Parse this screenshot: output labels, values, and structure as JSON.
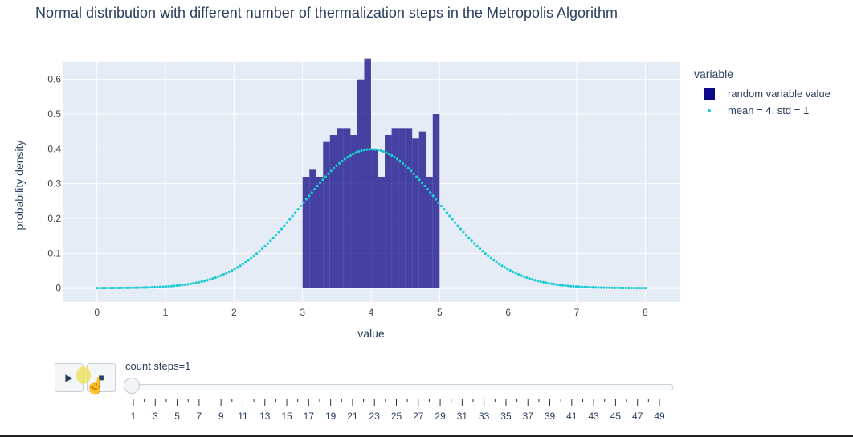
{
  "title": "Normal distribution with different number of thermalization steps in the Metropolis Algorithm",
  "colors": {
    "plot_bg": "#e5ecf6",
    "histogram": "#0d0887",
    "curve": "#1ecbd1",
    "grid": "#ffffff",
    "text": "#2a3f5f"
  },
  "legend": {
    "title": "variable",
    "items": [
      {
        "label": "random variable value",
        "symbol": "square"
      },
      {
        "label": "mean = 4, std = 1",
        "symbol": "dot"
      }
    ]
  },
  "controls": {
    "play_icon": "play-icon",
    "stop_icon": "stop-icon",
    "slider_label": "count steps=1",
    "slider_value": 1,
    "tick_labels": [
      "1",
      "3",
      "5",
      "7",
      "9",
      "11",
      "13",
      "15",
      "17",
      "19",
      "21",
      "23",
      "25",
      "27",
      "29",
      "31",
      "33",
      "35",
      "37",
      "39",
      "41",
      "43",
      "45",
      "47",
      "49"
    ]
  },
  "chart_data": {
    "type": "bar",
    "title": "Normal distribution with different number of thermalization steps in the Metropolis Algorithm",
    "xlabel": "value",
    "ylabel": "probability density",
    "xlim": [
      -0.5,
      8.5
    ],
    "ylim": [
      -0.04,
      0.65
    ],
    "xticks": [
      0,
      1,
      2,
      3,
      4,
      5,
      6,
      7,
      8
    ],
    "yticks": [
      0,
      0.1,
      0.2,
      0.3,
      0.4,
      0.5,
      0.6
    ],
    "ytick_labels": [
      "0",
      "0.1",
      "0.2",
      "0.3",
      "0.4",
      "0.5",
      "0.6"
    ],
    "histogram": {
      "name": "random variable value",
      "bin_start": 3.0,
      "bin_width": 0.1,
      "values": [
        0.32,
        0.34,
        0.32,
        0.42,
        0.44,
        0.46,
        0.46,
        0.44,
        0.6,
        0.66,
        0.4,
        0.32,
        0.44,
        0.46,
        0.46,
        0.46,
        0.43,
        0.45,
        0.32,
        0.5
      ]
    },
    "curve": {
      "name": "mean = 4, std = 1",
      "mean": 4,
      "std": 1,
      "x_range": [
        0,
        8
      ],
      "points": 200
    },
    "legend_position": "right",
    "grid": true
  }
}
